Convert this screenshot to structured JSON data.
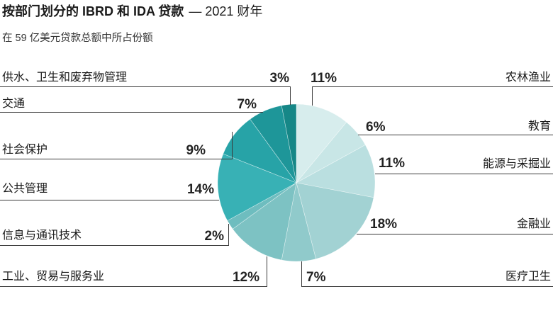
{
  "chart_data": {
    "type": "pie",
    "title": "按部门划分的 IBRD 和 IDA 贷款",
    "title_year": "— 2021 财年",
    "subtitle": "在 59 亿美元贷款总额中所占份额",
    "slices": [
      {
        "label": "农林渔业",
        "value": 11,
        "display": "11%",
        "color": "#d7eded"
      },
      {
        "label": "教育",
        "value": 6,
        "display": "6%",
        "color": "#c8e6e6"
      },
      {
        "label": "能源与采掘业",
        "value": 11,
        "display": "11%",
        "color": "#badfe0"
      },
      {
        "label": "金融业",
        "value": 18,
        "display": "18%",
        "color": "#a2d2d3"
      },
      {
        "label": "医疗卫生",
        "value": 7,
        "display": "7%",
        "color": "#90cacb"
      },
      {
        "label": "工业、贸易与服务业",
        "value": 12,
        "display": "12%",
        "color": "#7dc2c3"
      },
      {
        "label": "信息与通讯技术",
        "value": 2,
        "display": "2%",
        "color": "#6ebdbf"
      },
      {
        "label": "公共管理",
        "value": 14,
        "display": "14%",
        "color": "#38b1b5"
      },
      {
        "label": "社会保护",
        "value": 9,
        "display": "9%",
        "color": "#27a3a7"
      },
      {
        "label": "交通",
        "value": 7,
        "display": "7%",
        "color": "#1e9699"
      },
      {
        "label": "供水、卫生和废弃物管理",
        "value": 3,
        "display": "3%",
        "color": "#168787"
      }
    ]
  }
}
